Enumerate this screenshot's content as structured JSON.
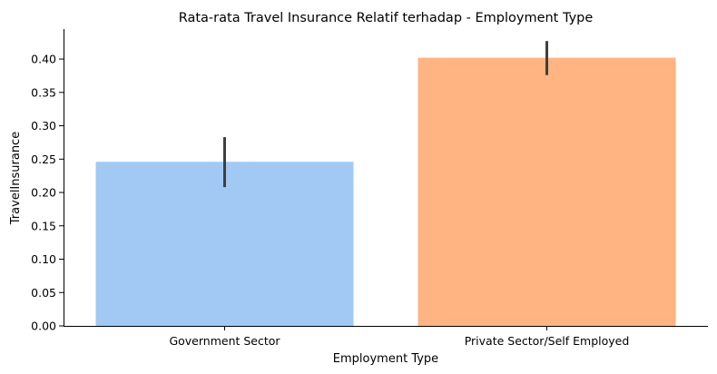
{
  "chart_data": {
    "type": "bar",
    "title": "Rata-rata Travel Insurance Relatif terhadap - Employment Type",
    "xlabel": "Employment Type",
    "ylabel": "TravelInsurance",
    "categories": [
      "Government Sector",
      "Private Sector/Self Employed"
    ],
    "values": [
      0.246,
      0.402
    ],
    "error_low": [
      0.208,
      0.376
    ],
    "error_high": [
      0.283,
      0.427
    ],
    "colors": [
      "#a1c9f4",
      "#ffb482"
    ],
    "ylim": [
      0,
      0.445
    ],
    "yticks": [
      "0.00",
      "0.05",
      "0.10",
      "0.15",
      "0.20",
      "0.25",
      "0.30",
      "0.35",
      "0.40"
    ],
    "grid": false
  }
}
